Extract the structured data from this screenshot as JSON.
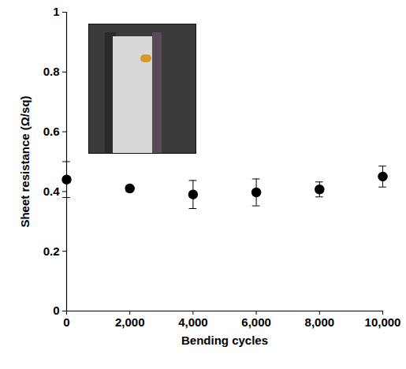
{
  "chart_data": {
    "type": "scatter",
    "x_label": "Bending cycles",
    "y_label": "Sheet resistance (Ω/sq)",
    "x": [
      0,
      2000,
      4000,
      6000,
      8000,
      10000
    ],
    "values": [
      0.44,
      0.41,
      0.39,
      0.397,
      0.407,
      0.45
    ],
    "error": [
      0.06,
      0.01,
      0.047,
      0.045,
      0.025,
      0.035
    ],
    "color": "#000000",
    "marker": "circle",
    "xlim": [
      0,
      10000
    ],
    "ylim": [
      0,
      1
    ],
    "xticks": [
      0,
      {
        "value": 2000,
        "label": "2,000"
      },
      {
        "value": 4000,
        "label": "4,000"
      },
      {
        "value": 6000,
        "label": "6,000"
      },
      {
        "value": 8000,
        "label": "8,000"
      },
      {
        "value": 10000,
        "label": "10,000"
      }
    ],
    "yticks": [
      0,
      0.2,
      0.4,
      0.6,
      0.8,
      1
    ],
    "grid": false
  }
}
